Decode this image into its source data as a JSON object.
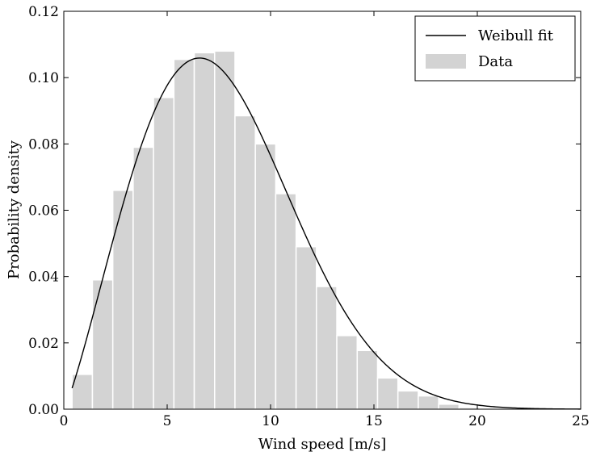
{
  "chart_data": {
    "type": "bar",
    "title": "",
    "xlabel": "Wind speed [m/s]",
    "ylabel": "Probability density",
    "xlim": [
      0,
      25
    ],
    "ylim": [
      0,
      0.12
    ],
    "grid": false,
    "legend_position": "top-right",
    "x_ticks": [
      "0",
      "5",
      "10",
      "15",
      "20",
      "25"
    ],
    "y_ticks": [
      "0.00",
      "0.02",
      "0.04",
      "0.06",
      "0.08",
      "0.10",
      "0.12"
    ],
    "histogram": {
      "name": "Data",
      "color": "#d3d3d3",
      "edge_color": "#ffffff",
      "bin_start": 0.4,
      "bin_width": 0.985,
      "values": [
        0.0105,
        0.039,
        0.066,
        0.079,
        0.094,
        0.1055,
        0.1075,
        0.108,
        0.0885,
        0.08,
        0.065,
        0.049,
        0.037,
        0.0222,
        0.0177,
        0.0094,
        0.0055,
        0.004,
        0.0015,
        0.0005
      ]
    },
    "fit": {
      "name": "Weibull fit",
      "color": "#000000",
      "distribution": "weibull",
      "shape_k": 2.2,
      "scale_c": 8.65,
      "x_start": 0.4,
      "x_end": 25
    },
    "legend": [
      "Weibull fit",
      "Data"
    ]
  }
}
